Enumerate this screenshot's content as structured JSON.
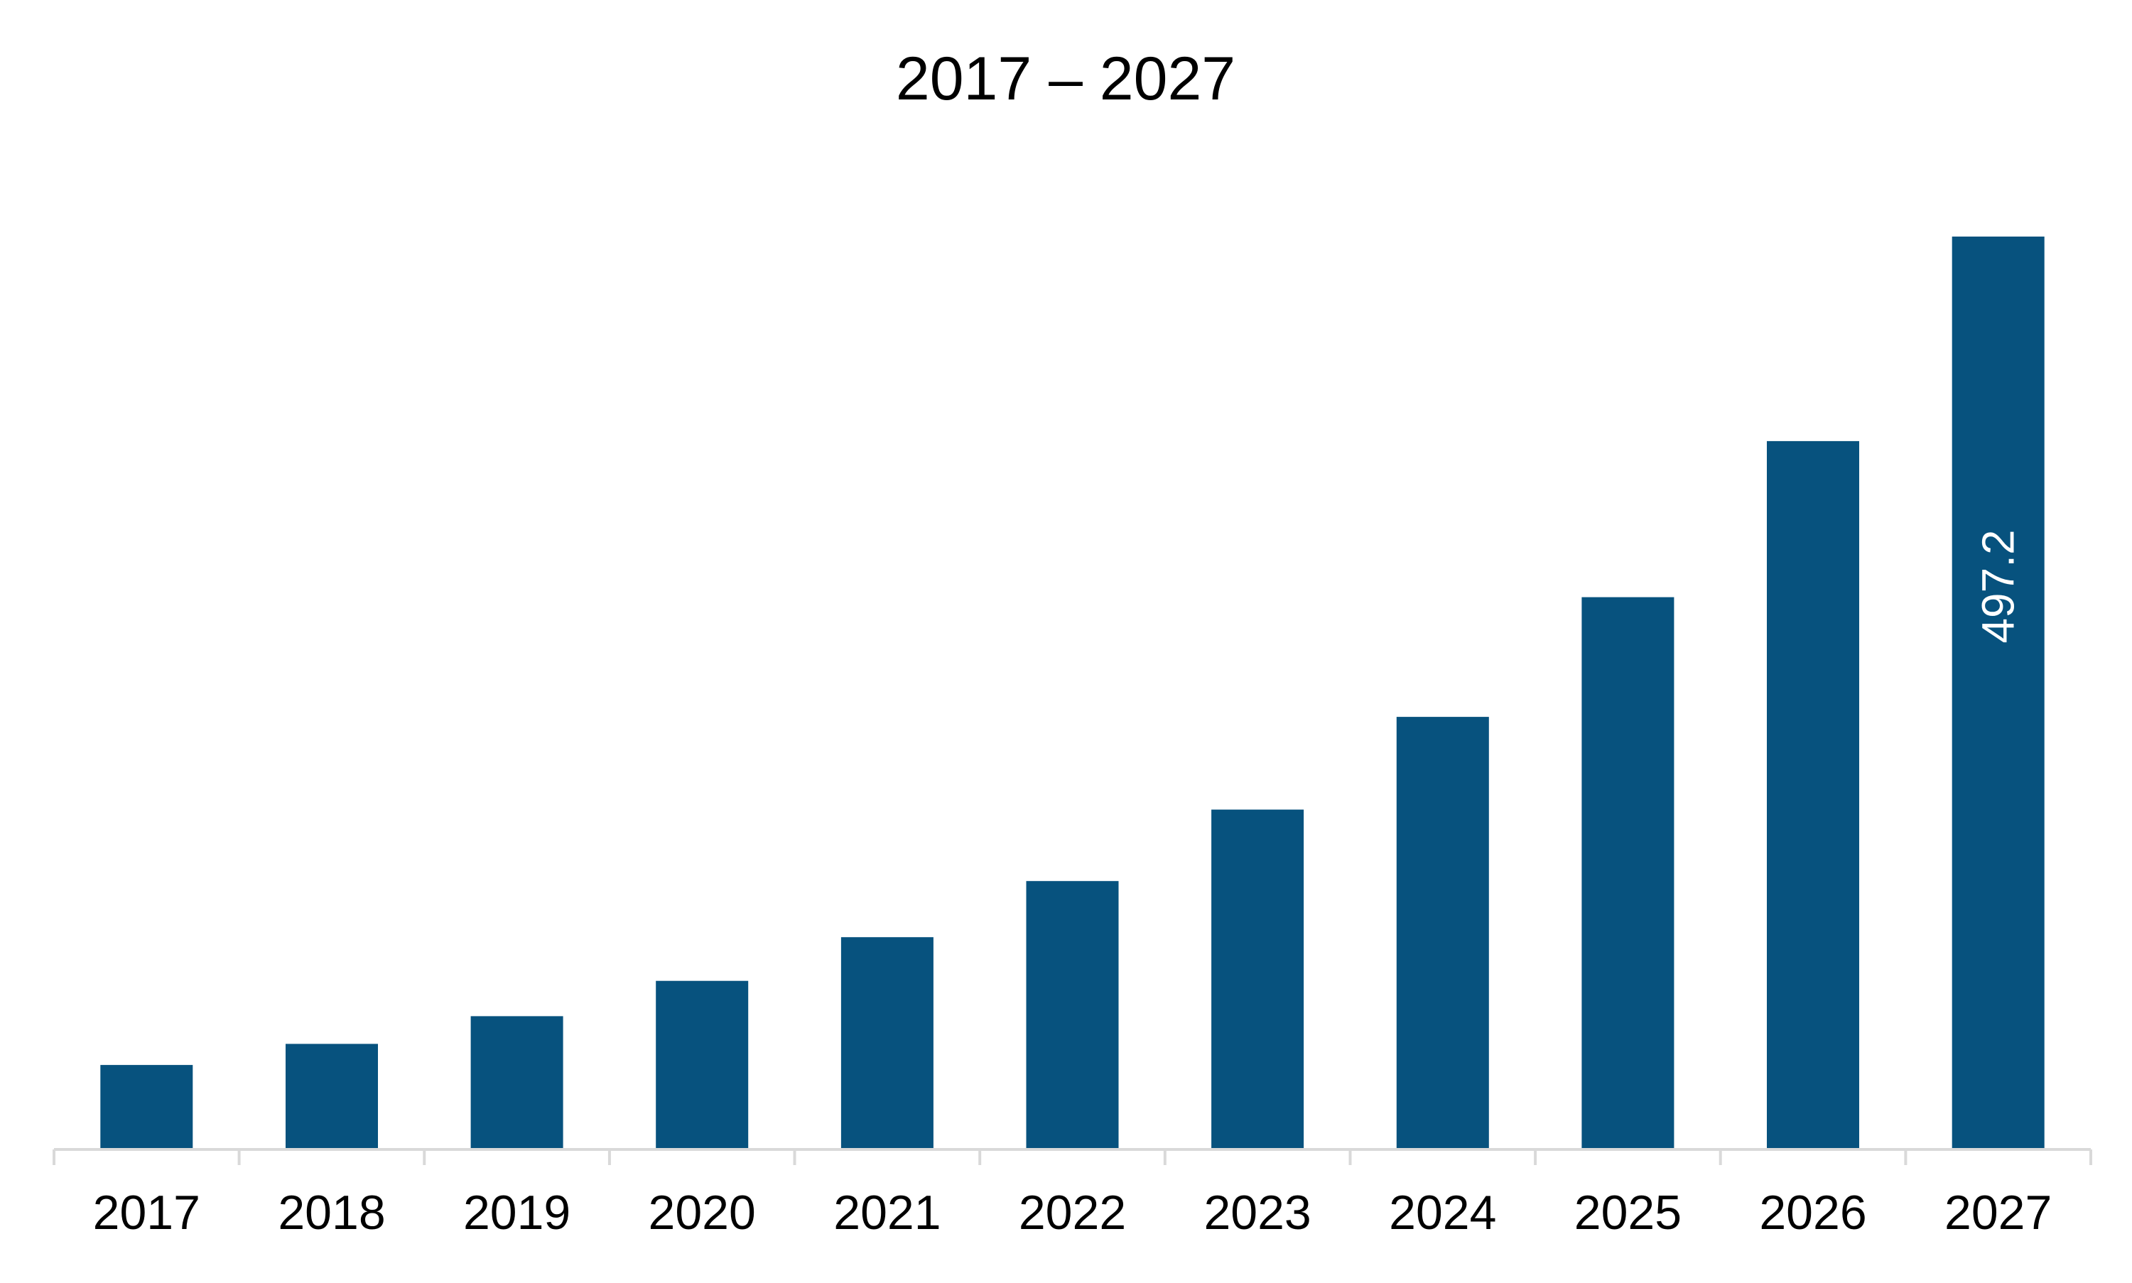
{
  "chart_data": {
    "type": "bar",
    "title": "2017 – 2027",
    "xlabel": "",
    "ylabel": "",
    "categories": [
      "2017",
      "2018",
      "2019",
      "2020",
      "2021",
      "2022",
      "2023",
      "2024",
      "2025",
      "2026",
      "2027"
    ],
    "values": [
      46,
      57.5,
      72.6,
      91.8,
      115.6,
      146.2,
      185.1,
      235.6,
      300.8,
      385.8,
      497.2
    ],
    "data_labels": [
      "",
      "",
      "",
      "",
      "",
      "",
      "",
      "",
      "",
      "",
      "497.2"
    ],
    "ylim": [
      0,
      497.2
    ],
    "grid": false,
    "legend": "none",
    "colors": {
      "bar": "#07527E",
      "axis": "#D9D9D9",
      "label_on_bar": "#FFFFFF",
      "text": "#000000"
    }
  }
}
